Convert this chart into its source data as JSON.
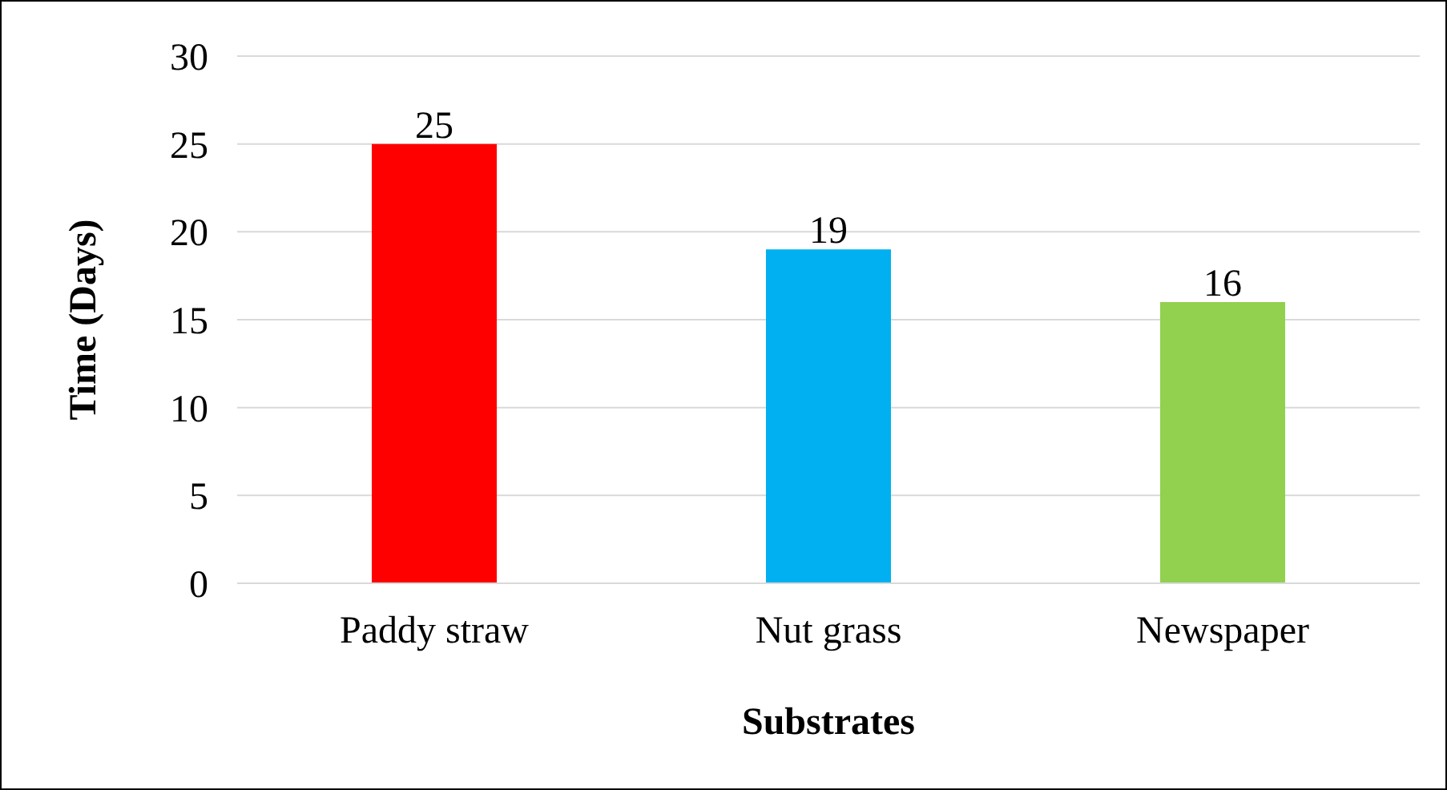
{
  "chart_data": {
    "type": "bar",
    "xlabel": "Substrates",
    "ylabel": "Time (Days)",
    "categories": [
      "Paddy straw",
      "Nut grass",
      "Newspaper"
    ],
    "values": [
      25,
      19,
      16
    ],
    "colors": [
      "#ff0000",
      "#00b0f0",
      "#92d050"
    ],
    "ylim": [
      0,
      30
    ],
    "yticks": [
      0,
      5,
      10,
      15,
      20,
      25,
      30
    ],
    "grid": "y",
    "data_labels": true
  }
}
